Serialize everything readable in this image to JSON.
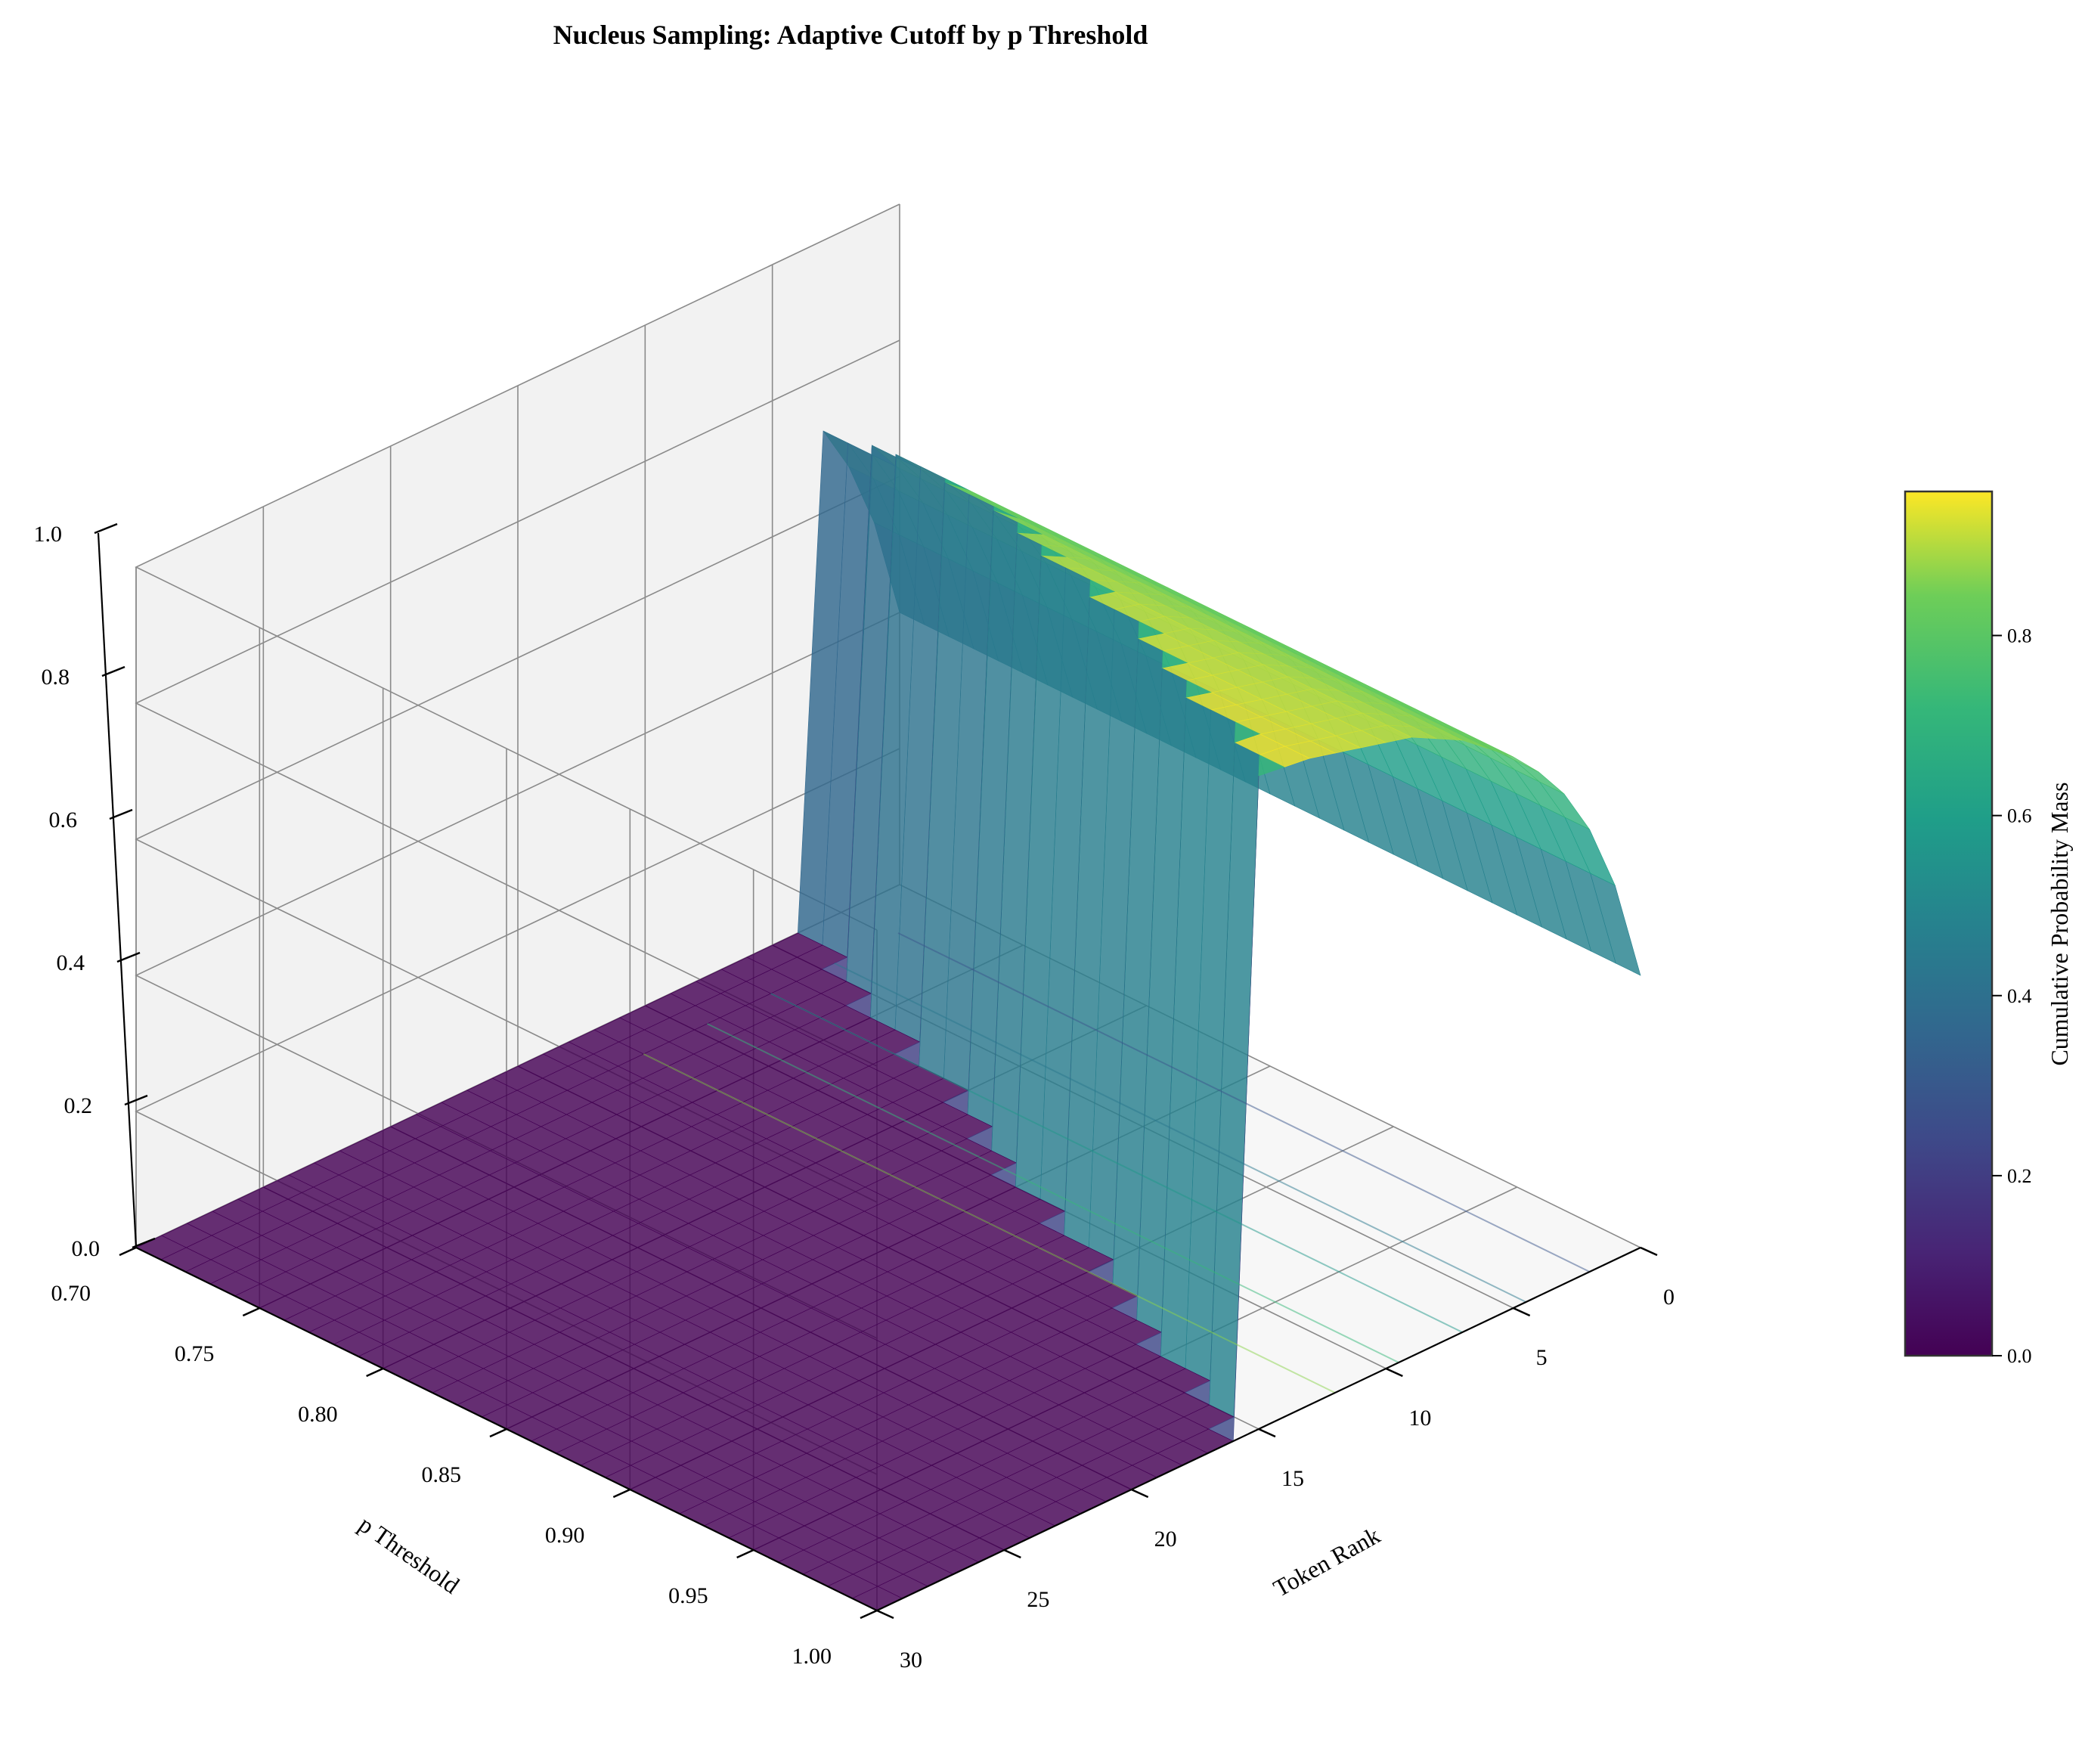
{
  "chart_data": {
    "type": "surface3d",
    "title": "Nucleus Sampling: Adaptive Cutoff by p Threshold",
    "x_axis": {
      "label": "Token Rank",
      "range": [
        0,
        30
      ],
      "ticks": [
        "0",
        "5",
        "10",
        "15",
        "20",
        "25",
        "30"
      ]
    },
    "y_axis": {
      "label": "p Threshold",
      "range": [
        0.7,
        1.0
      ],
      "ticks": [
        "0.70",
        "0.75",
        "0.80",
        "0.85",
        "0.90",
        "0.95",
        "1.00"
      ]
    },
    "z_axis": {
      "label": "",
      "range": [
        0.0,
        1.0
      ],
      "ticks": [
        "0.0",
        "0.2",
        "0.4",
        "0.6",
        "0.8",
        "1.0"
      ]
    },
    "colorbar": {
      "label": "Cumulative Probability Mass",
      "range": [
        0.0,
        0.96
      ],
      "ticks": [
        "0.0",
        "0.2",
        "0.4",
        "0.6",
        "0.8"
      ],
      "colormap": "viridis"
    },
    "surface": {
      "description_of_values": "cumulative probability mass for tokens within nucleus; 0 beyond cutoff",
      "p_values": [
        0.7,
        0.75,
        0.8,
        0.85,
        0.9,
        0.95,
        1.0
      ],
      "cutoff_rank_by_p": [
        3,
        5,
        7,
        9,
        11,
        13,
        15
      ],
      "cumulative_mass_by_rank": [
        0.4,
        0.55,
        0.65,
        0.72,
        0.77,
        0.81,
        0.84,
        0.87,
        0.89,
        0.91,
        0.92,
        0.93,
        0.94,
        0.95,
        0.955,
        0.96
      ]
    },
    "grid": true,
    "view": "3d-elevated"
  }
}
